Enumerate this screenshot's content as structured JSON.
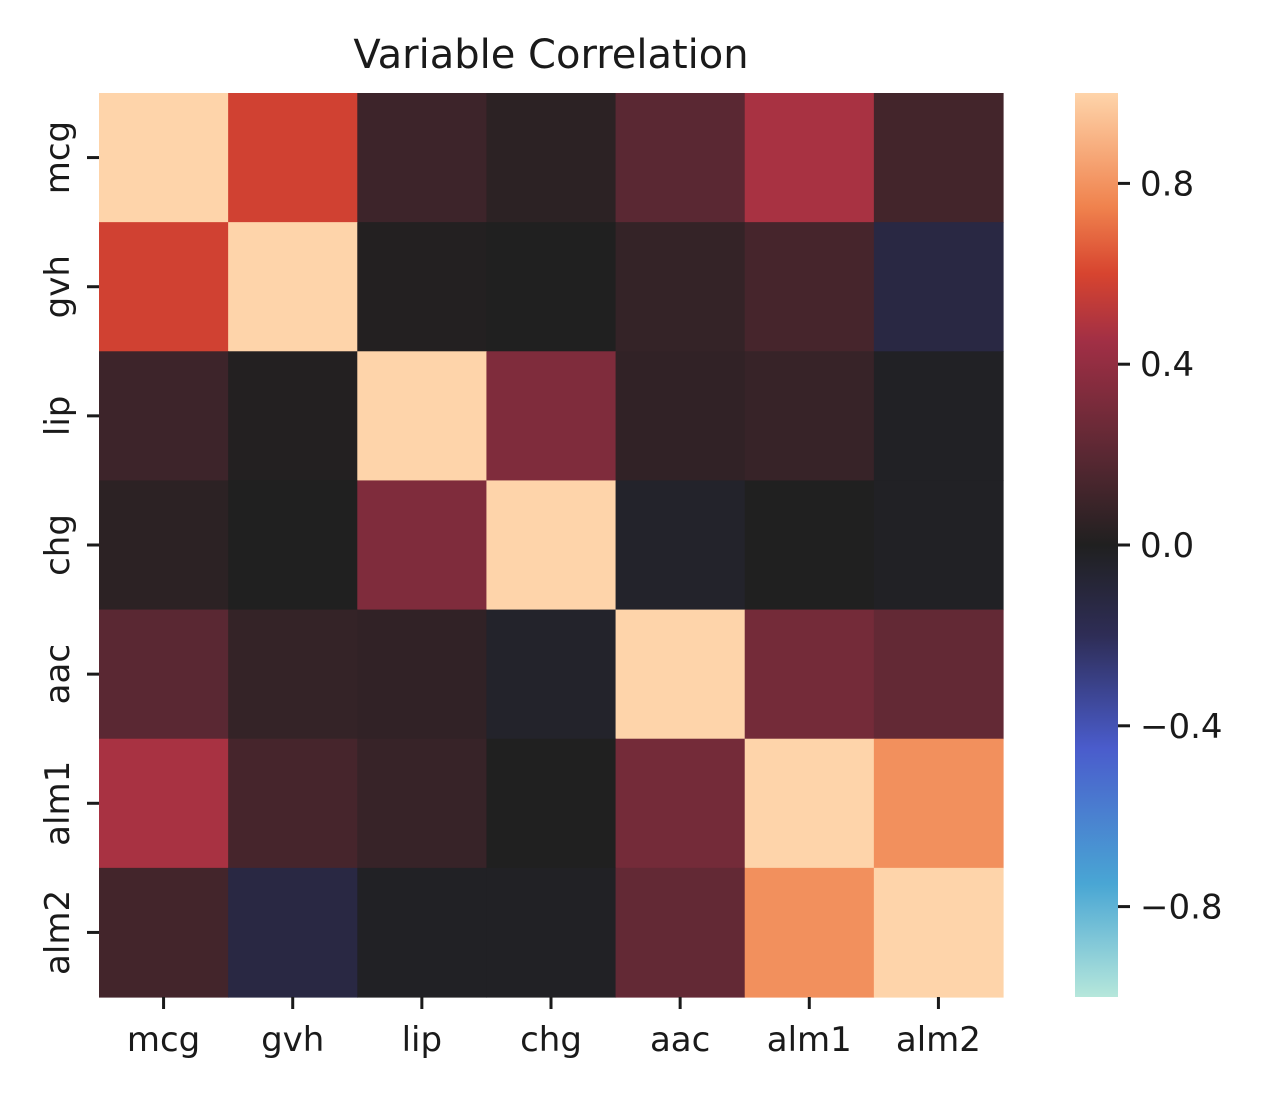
{
  "chart_data": {
    "type": "heatmap",
    "title": "Variable Correlation",
    "categories": [
      "mcg",
      "gvh",
      "lip",
      "chg",
      "aac",
      "alm1",
      "alm2"
    ],
    "matrix": [
      [
        1.0,
        0.58,
        0.1,
        0.04,
        0.2,
        0.47,
        0.12
      ],
      [
        0.58,
        1.0,
        0.01,
        0.0,
        0.07,
        0.13,
        -0.13
      ],
      [
        0.1,
        0.01,
        1.0,
        0.33,
        0.06,
        0.08,
        -0.02
      ],
      [
        0.04,
        0.0,
        0.33,
        1.0,
        -0.04,
        0.0,
        -0.02
      ],
      [
        0.2,
        0.07,
        0.06,
        -0.04,
        1.0,
        0.29,
        0.23
      ],
      [
        0.47,
        0.13,
        0.08,
        0.0,
        0.29,
        1.0,
        0.79
      ],
      [
        0.12,
        -0.13,
        -0.02,
        -0.02,
        0.23,
        0.79,
        1.0
      ]
    ],
    "colorbar": {
      "range": [
        -1,
        1
      ],
      "ticks": [
        0.8,
        0.4,
        0.0,
        -0.4,
        -0.8
      ],
      "tick_labels": [
        "0.8",
        "0.4",
        "0.0",
        "−0.4",
        "−0.8"
      ]
    },
    "colormap_stops": [
      {
        "v": -1.0,
        "color": "#b6e7db"
      },
      {
        "v": -0.75,
        "color": "#49a6d4"
      },
      {
        "v": -0.45,
        "color": "#4a5ccc"
      },
      {
        "v": -0.2,
        "color": "#2e2d56"
      },
      {
        "v": 0.0,
        "color": "#202020"
      },
      {
        "v": 0.2,
        "color": "#5a2833"
      },
      {
        "v": 0.45,
        "color": "#a12f45"
      },
      {
        "v": 0.6,
        "color": "#d7442f"
      },
      {
        "v": 0.75,
        "color": "#f0834e"
      },
      {
        "v": 1.0,
        "color": "#fed4aa"
      }
    ]
  }
}
